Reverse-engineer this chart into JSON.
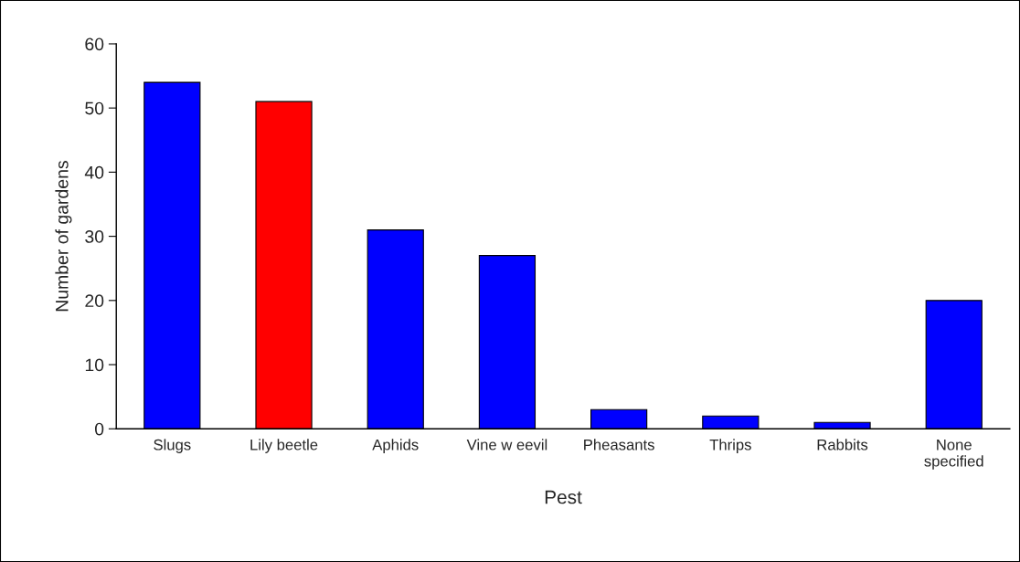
{
  "chart_data": {
    "type": "bar",
    "xlabel": "Pest",
    "ylabel": "Number of gardens",
    "categories": [
      "Slugs",
      "Lily beetle",
      "Aphids",
      "Vine w eevil",
      "Pheasants",
      "Thrips",
      "Rabbits",
      "None\nspecified"
    ],
    "values": [
      54,
      51,
      31,
      27,
      3,
      2,
      1,
      20
    ],
    "colors": [
      "#0000ff",
      "#ff0000",
      "#0000ff",
      "#0000ff",
      "#0000ff",
      "#0000ff",
      "#0000ff",
      "#0000ff"
    ],
    "ylim": [
      0,
      60
    ],
    "yticks": [
      0,
      10,
      20,
      30,
      40,
      50,
      60
    ],
    "grid": false,
    "legend": false
  }
}
